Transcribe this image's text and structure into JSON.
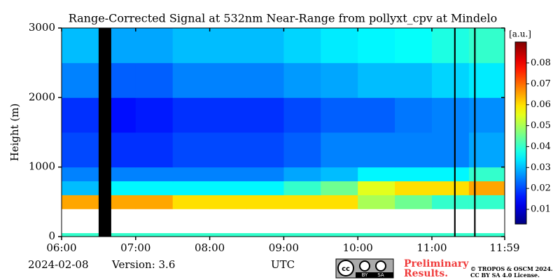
{
  "chart_data": {
    "type": "heatmap",
    "title": "Range-Corrected Signal at 532nm Near-Range from pollyxt_cpv at Mindelo",
    "ylabel": "Height (m)",
    "xlabel": "UTC",
    "colorbar_label": "[a.u.]",
    "annotations": [
      "2024-02-08",
      "Version: 3.6",
      "Preliminary",
      "Results.",
      "© TROPOS & OSCM 2024.",
      "BY",
      "SA",
      "cc",
      "CC BY SA 4.0 License."
    ],
    "colormap": "jet",
    "x_edges": [
      6,
      6.5,
      7,
      7.5,
      8,
      8.5,
      9,
      9.5,
      10,
      10.5,
      11,
      11.5,
      11.983
    ],
    "y_edges": [
      0,
      50,
      400,
      600,
      800,
      1000,
      1500,
      2000,
      2500,
      3000
    ],
    "values": [
      [
        0.04,
        0.04,
        0.04,
        0.04,
        0.04,
        0.04,
        0.04,
        0.04,
        0.04,
        0.04,
        0.04,
        0.04
      ],
      [
        null,
        null,
        null,
        null,
        null,
        null,
        null,
        null,
        null,
        null,
        null,
        null
      ],
      [
        0.065,
        0.065,
        0.065,
        0.06,
        0.06,
        0.06,
        0.06,
        0.06,
        0.05,
        0.045,
        0.04,
        0.04
      ],
      [
        0.03,
        0.035,
        0.035,
        0.035,
        0.035,
        0.035,
        0.04,
        0.045,
        0.055,
        0.06,
        0.06,
        0.065
      ],
      [
        0.025,
        0.025,
        0.025,
        0.025,
        0.025,
        0.025,
        0.028,
        0.03,
        0.035,
        0.035,
        0.035,
        0.04
      ],
      [
        0.02,
        0.018,
        0.018,
        0.02,
        0.02,
        0.02,
        0.022,
        0.025,
        0.025,
        0.025,
        0.025,
        0.028
      ],
      [
        0.018,
        0.015,
        0.016,
        0.018,
        0.018,
        0.018,
        0.02,
        0.022,
        0.022,
        0.024,
        0.025,
        0.026
      ],
      [
        0.025,
        0.022,
        0.022,
        0.025,
        0.025,
        0.025,
        0.027,
        0.028,
        0.03,
        0.03,
        0.032,
        0.034
      ],
      [
        0.03,
        0.028,
        0.028,
        0.03,
        0.03,
        0.03,
        0.032,
        0.034,
        0.035,
        0.036,
        0.038,
        0.04
      ]
    ],
    "gaps": [
      [
        6.5,
        6.67
      ],
      [
        11.3,
        11.32
      ],
      [
        11.57,
        11.59
      ]
    ],
    "xlim": [
      6,
      11.983
    ],
    "xticks": [
      {
        "value": 6,
        "label": "06:00"
      },
      {
        "value": 7,
        "label": "07:00"
      },
      {
        "value": 8,
        "label": "08:00"
      },
      {
        "value": 9,
        "label": "09:00"
      },
      {
        "value": 10,
        "label": "10:00"
      },
      {
        "value": 11,
        "label": "11:00"
      },
      {
        "value": 11.983,
        "label": "11:59"
      }
    ],
    "ylim": [
      0,
      3000
    ],
    "yticks": [
      0,
      1000,
      2000,
      3000
    ],
    "clim": [
      0.003,
      0.09
    ],
    "cticks": [
      0.01,
      0.02,
      0.03,
      0.04,
      0.05,
      0.06,
      0.07,
      0.08
    ]
  }
}
